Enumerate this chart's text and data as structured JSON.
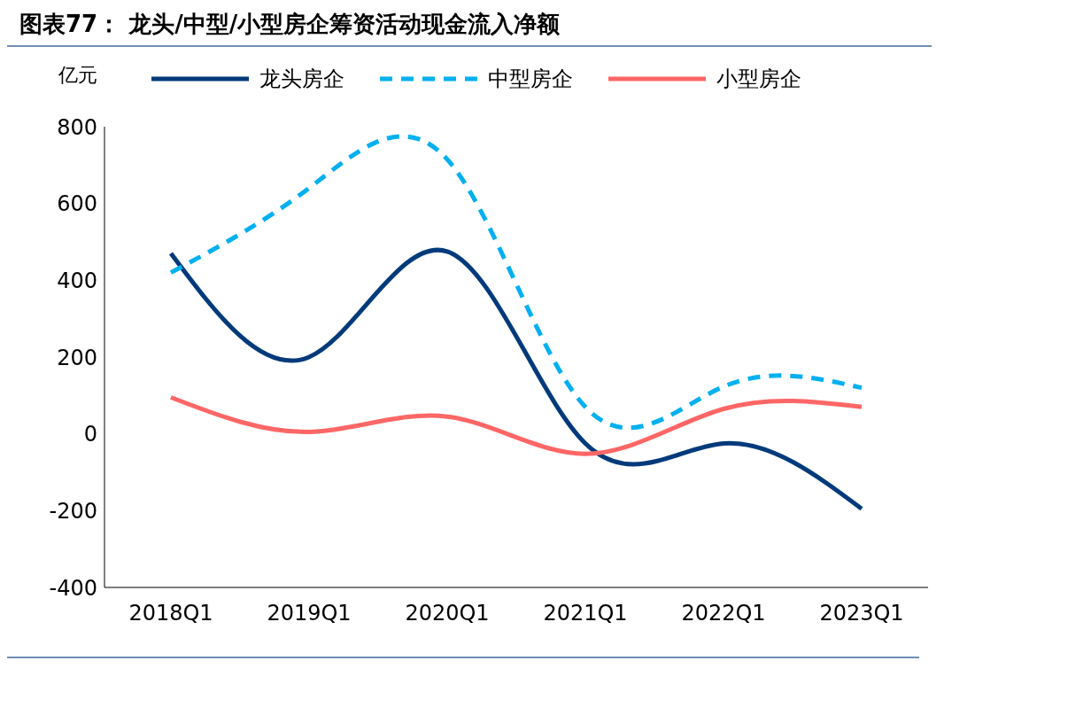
{
  "chart_data": {
    "type": "line",
    "title": "图表77：  龙头/中型/小型房企筹资活动现金流入净额",
    "ylabel": "亿元",
    "categories": [
      "2018Q1",
      "2019Q1",
      "2020Q1",
      "2021Q1",
      "2022Q1",
      "2023Q1"
    ],
    "series": [
      {
        "name": "龙头房企",
        "color": "#003a7a",
        "values": [
          470,
          200,
          475,
          -25,
          -25,
          -195
        ]
      },
      {
        "name": "中型房企",
        "color": "#00b0f0",
        "line_style": "dashed",
        "values": [
          420,
          640,
          715,
          70,
          123,
          120
        ]
      },
      {
        "name": "小型房企",
        "color": "#ff6666",
        "values": [
          95,
          5,
          45,
          -52,
          65,
          70
        ]
      }
    ],
    "ylim": [
      -400,
      800
    ],
    "yticks": [
      -400,
      -200,
      0,
      200,
      400,
      600,
      800
    ],
    "legend": "top",
    "marker": "none",
    "line_style": "solid"
  }
}
